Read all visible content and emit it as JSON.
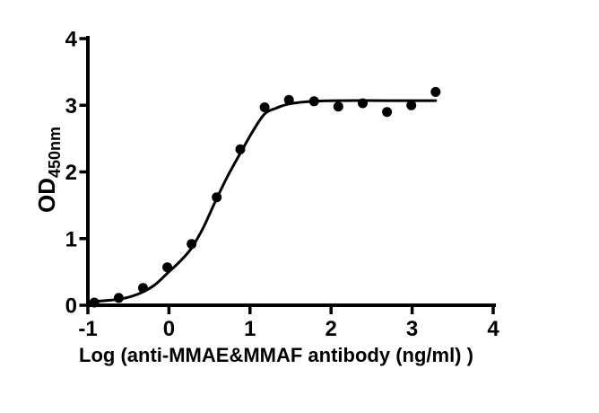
{
  "page": {
    "background": "#ffffff"
  },
  "chart_data": {
    "type": "scatter",
    "subtype": "sigmoidal dose-response (ELISA binding) curve",
    "title": "",
    "xlabel": "Log (anti-MMAE&MMAF antibody (ng/ml) )",
    "ylabel": "OD450nm",
    "ylabel_main": "OD",
    "ylabel_sub": "450nm",
    "xlim": [
      -1,
      4
    ],
    "ylim": [
      0,
      4
    ],
    "x_ticks": [
      -1,
      0,
      1,
      2,
      3,
      4
    ],
    "y_ticks": [
      0,
      1,
      2,
      3,
      4
    ],
    "grid": false,
    "legend_position": "none",
    "colors": {
      "points": "#000000",
      "curve": "#000000",
      "axes": "#000000",
      "background": "#ffffff"
    },
    "series": [
      {
        "name": "anti-MMAE&MMAF antibody",
        "marker": "filled-circle",
        "points": [
          [
            -0.92,
            0.04
          ],
          [
            -0.62,
            0.11
          ],
          [
            -0.32,
            0.26
          ],
          [
            -0.02,
            0.57
          ],
          [
            0.28,
            0.92
          ],
          [
            0.59,
            1.62
          ],
          [
            0.88,
            2.34
          ],
          [
            1.18,
            2.97
          ],
          [
            1.48,
            3.08
          ],
          [
            1.79,
            3.06
          ],
          [
            2.09,
            2.98
          ],
          [
            2.39,
            3.03
          ],
          [
            2.69,
            2.9
          ],
          [
            2.99,
            3.0
          ],
          [
            3.29,
            3.2
          ]
        ]
      }
    ],
    "fit_curve": {
      "model": "4PL sigmoid",
      "bottom": 0.03,
      "top": 3.07,
      "logEC50": 0.57,
      "hill_slope": 1.55,
      "x_start": -0.99,
      "x_end": 3.29,
      "samples": [
        [
          -0.99,
          0.05
        ],
        [
          -0.77,
          0.07
        ],
        [
          -0.62,
          0.09
        ],
        [
          -0.47,
          0.13
        ],
        [
          -0.32,
          0.2
        ],
        [
          -0.17,
          0.31
        ],
        [
          -0.02,
          0.48
        ],
        [
          0.13,
          0.65
        ],
        [
          0.28,
          0.86
        ],
        [
          0.43,
          1.18
        ],
        [
          0.57,
          1.55
        ],
        [
          0.73,
          1.95
        ],
        [
          0.88,
          2.28
        ],
        [
          1.03,
          2.6
        ],
        [
          1.18,
          2.87
        ],
        [
          1.33,
          2.96
        ],
        [
          1.48,
          3.02
        ],
        [
          1.78,
          3.06
        ],
        [
          2.1,
          3.07
        ],
        [
          2.7,
          3.07
        ],
        [
          3.29,
          3.07
        ]
      ]
    }
  }
}
